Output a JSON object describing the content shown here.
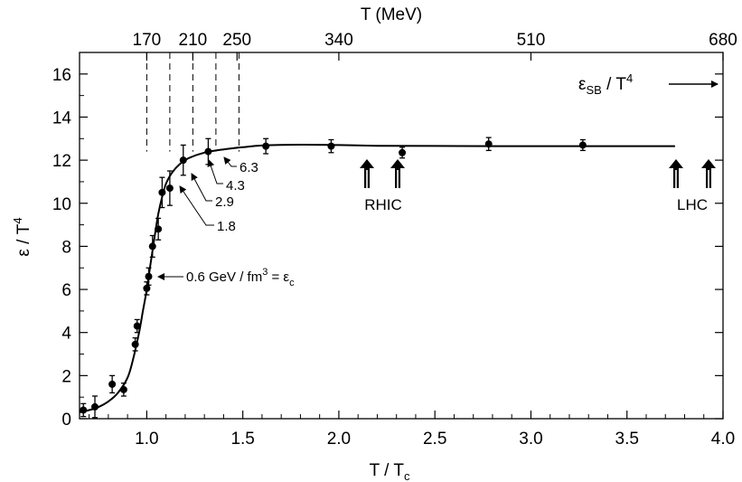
{
  "chart_data": {
    "type": "scatter",
    "title": "",
    "xlabel": "T / T",
    "xlabel_sub": "c",
    "ylabel": "ε / T",
    "ylabel_sup": "4",
    "top_axis_label": "T (MeV)",
    "xlim": [
      0.65,
      4.0
    ],
    "ylim": [
      0,
      17
    ],
    "x_ticks": [
      1.0,
      1.5,
      2.0,
      2.5,
      3.0,
      3.5,
      4.0
    ],
    "x_tick_labels": [
      "1.0",
      "1.5",
      "2.0",
      "2.5",
      "3.0",
      "3.5",
      "4.0"
    ],
    "y_ticks": [
      0,
      2,
      4,
      6,
      8,
      10,
      12,
      14,
      16
    ],
    "y_tick_labels": [
      "0",
      "2",
      "4",
      "6",
      "8",
      "10",
      "12",
      "14",
      "16"
    ],
    "top_ticks": [
      {
        "label": "170",
        "x": 1.0
      },
      {
        "label": "210",
        "x": 1.24
      },
      {
        "label": "250",
        "x": 1.47
      },
      {
        "label": "340",
        "x": 2.0
      },
      {
        "label": "510",
        "x": 3.0
      },
      {
        "label": "680",
        "x": 4.0
      }
    ],
    "grid": false,
    "points": [
      {
        "x": 0.67,
        "y": 0.4,
        "err": 0.3
      },
      {
        "x": 0.73,
        "y": 0.55,
        "err": 0.5
      },
      {
        "x": 0.82,
        "y": 1.6,
        "err": 0.4
      },
      {
        "x": 0.88,
        "y": 1.35,
        "err": 0.3
      },
      {
        "x": 0.94,
        "y": 3.45,
        "err": 0.3
      },
      {
        "x": 0.95,
        "y": 4.3,
        "err": 0.3
      },
      {
        "x": 1.0,
        "y": 6.05,
        "err": 0.3
      },
      {
        "x": 1.01,
        "y": 6.6,
        "err": 0.4
      },
      {
        "x": 1.03,
        "y": 8.0,
        "err": 0.5
      },
      {
        "x": 1.06,
        "y": 8.8,
        "err": 0.5
      },
      {
        "x": 1.08,
        "y": 10.5,
        "err": 0.7
      },
      {
        "x": 1.12,
        "y": 10.7,
        "err": 0.8
      },
      {
        "x": 1.19,
        "y": 12.0,
        "err": 0.7
      },
      {
        "x": 1.32,
        "y": 12.4,
        "err": 0.6
      },
      {
        "x": 1.62,
        "y": 12.65,
        "err": 0.35
      },
      {
        "x": 1.96,
        "y": 12.65,
        "err": 0.3
      },
      {
        "x": 2.33,
        "y": 12.35,
        "err": 0.25
      },
      {
        "x": 2.78,
        "y": 12.75,
        "err": 0.3
      },
      {
        "x": 3.27,
        "y": 12.7,
        "err": 0.25
      }
    ],
    "curve": [
      [
        0.65,
        0.3
      ],
      [
        0.7,
        0.4
      ],
      [
        0.75,
        0.55
      ],
      [
        0.8,
        0.8
      ],
      [
        0.85,
        1.2
      ],
      [
        0.9,
        1.9
      ],
      [
        0.93,
        2.8
      ],
      [
        0.96,
        4.0
      ],
      [
        0.98,
        5.0
      ],
      [
        1.0,
        6.0
      ],
      [
        1.02,
        7.2
      ],
      [
        1.04,
        8.4
      ],
      [
        1.06,
        9.5
      ],
      [
        1.08,
        10.3
      ],
      [
        1.1,
        10.9
      ],
      [
        1.13,
        11.4
      ],
      [
        1.17,
        11.8
      ],
      [
        1.22,
        12.1
      ],
      [
        1.3,
        12.35
      ],
      [
        1.4,
        12.5
      ],
      [
        1.5,
        12.6
      ],
      [
        1.6,
        12.68
      ],
      [
        1.8,
        12.72
      ],
      [
        2.0,
        12.7
      ],
      [
        2.2,
        12.67
      ],
      [
        2.5,
        12.66
      ],
      [
        3.0,
        12.65
      ],
      [
        3.5,
        12.65
      ],
      [
        3.75,
        12.65
      ]
    ],
    "vlines": [
      1.0,
      1.12,
      1.24,
      1.36,
      1.48
    ],
    "annotations": {
      "eps_c_pre": "0.6 GeV / fm",
      "eps_c_sup": "3",
      "eps_c_mid": " = ε",
      "eps_c_sub": "c",
      "e1": "1.8",
      "e2": "2.9",
      "e3": "4.3",
      "e4": "6.3",
      "sb_eps": "ε",
      "sb_sub": "SB",
      "sb_mid": " / T",
      "sb_sup": "4",
      "rhic": "RHIC",
      "lhc": "LHC"
    }
  }
}
